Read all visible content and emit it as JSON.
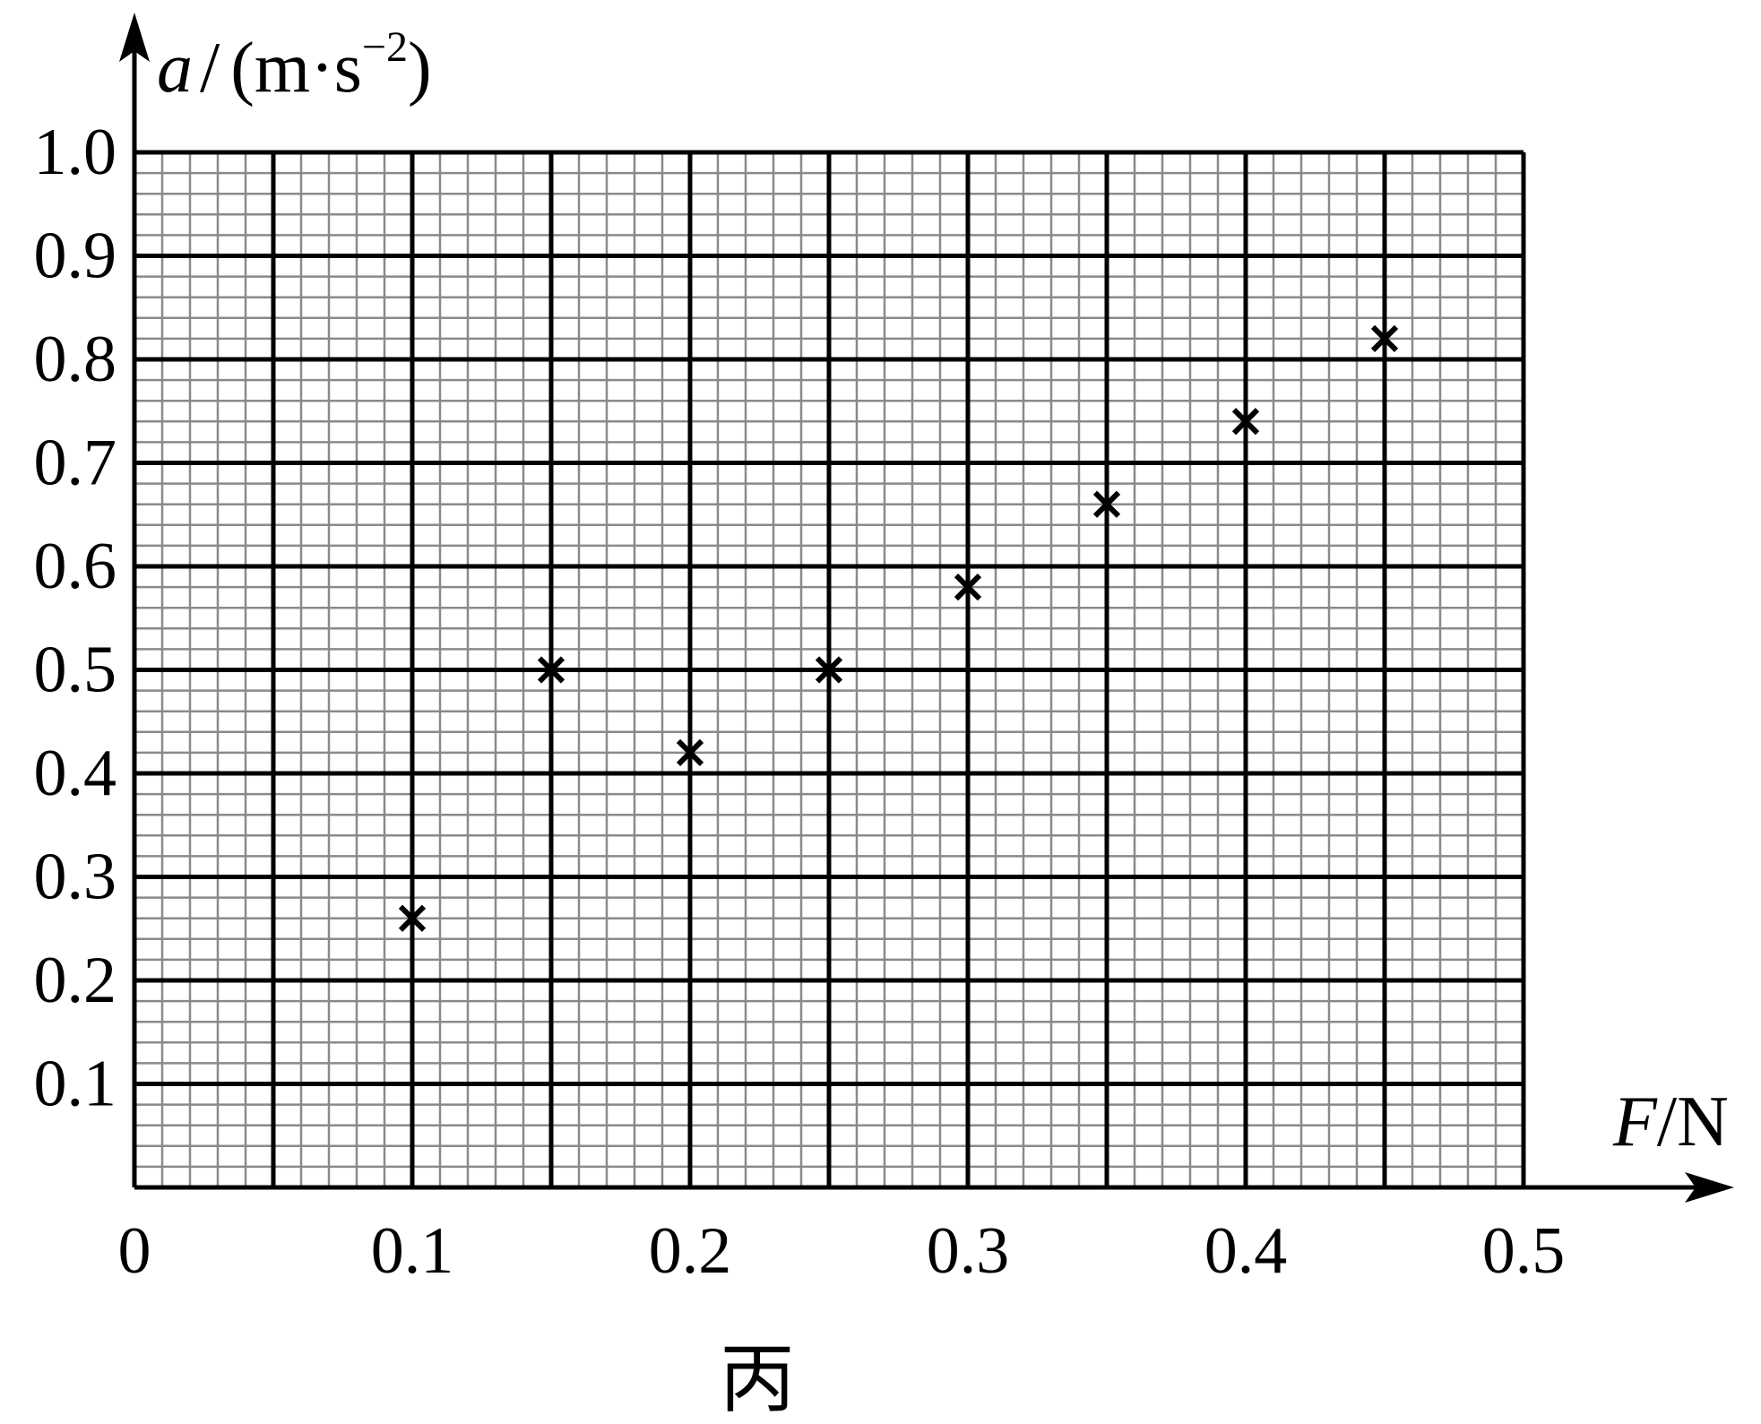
{
  "chart_data": {
    "type": "scatter",
    "marker": "x",
    "xlabel": {
      "symbol": "F",
      "unit": "N"
    },
    "ylabel": {
      "symbol": "a",
      "unit_open": "(m·s",
      "unit_exp": "−2",
      "unit_close": ")"
    },
    "xlim": [
      0,
      0.5
    ],
    "ylim": [
      0,
      1.0
    ],
    "xticks": [
      {
        "value": 0,
        "label": "0"
      },
      {
        "value": 0.1,
        "label": "0.1"
      },
      {
        "value": 0.2,
        "label": "0.2"
      },
      {
        "value": 0.3,
        "label": "0.3"
      },
      {
        "value": 0.4,
        "label": "0.4"
      },
      {
        "value": 0.5,
        "label": "0.5"
      }
    ],
    "yticks": [
      {
        "value": 0.1,
        "label": "0.1"
      },
      {
        "value": 0.2,
        "label": "0.2"
      },
      {
        "value": 0.3,
        "label": "0.3"
      },
      {
        "value": 0.4,
        "label": "0.4"
      },
      {
        "value": 0.5,
        "label": "0.5"
      },
      {
        "value": 0.6,
        "label": "0.6"
      },
      {
        "value": 0.7,
        "label": "0.7"
      },
      {
        "value": 0.8,
        "label": "0.8"
      },
      {
        "value": 0.9,
        "label": "0.9"
      },
      {
        "value": 1.0,
        "label": "1.0"
      }
    ],
    "grid": {
      "major_x": 0.05,
      "major_y": 0.1,
      "minor_divisions": 5
    },
    "series": [
      {
        "x": [
          0.1,
          0.15,
          0.2,
          0.25,
          0.3,
          0.35,
          0.4,
          0.45
        ],
        "y": [
          0.26,
          0.5,
          0.42,
          0.5,
          0.58,
          0.66,
          0.74,
          0.82
        ]
      }
    ],
    "caption": "丙"
  }
}
